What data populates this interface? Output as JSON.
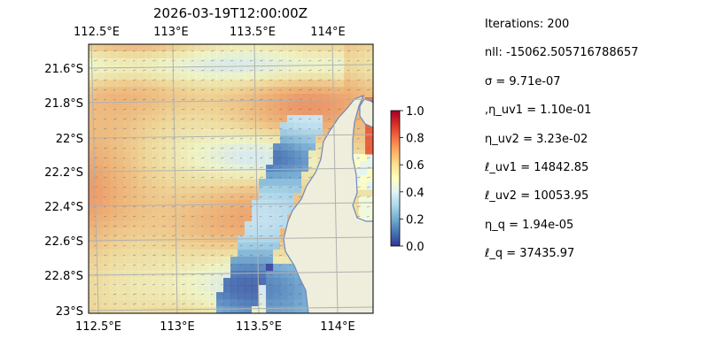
{
  "chart_data": {
    "type": "heatmap",
    "title": "2026-03-19T12:00:00Z",
    "x_top_ticks": [
      "112.5°E",
      "113°E",
      "113.5°E",
      "114°E"
    ],
    "x_bottom_ticks": [
      "112.5°E",
      "113°E",
      "113.5°E",
      "114°E"
    ],
    "y_ticks": [
      "21.6°S",
      "21.8°S",
      "22°S",
      "22.2°S",
      "22.4°S",
      "22.6°S",
      "22.8°S",
      "23°S"
    ],
    "xlim": [
      112.5,
      114.2
    ],
    "ylim": [
      -23.0,
      -21.5
    ],
    "grid": true,
    "colorbar": {
      "range": [
        0.0,
        1.0
      ],
      "ticks": [
        "0.0",
        "0.2",
        "0.4",
        "0.6",
        "0.8",
        "1.0"
      ]
    },
    "colors": {
      "ocean_background": "#9bb8dd",
      "land": "#efeedc",
      "coast": "#6e88b8",
      "grid": "#b0b0b0"
    }
  },
  "stats": [
    "Iterations: 200",
    "nll: -15062.505716788657",
    "σ = 9.71e-07",
    ",η_uv1 = 1.10e-01",
    "η_uv2 = 3.23e-02",
    "ℓ_uv1 = 14842.85",
    "ℓ_uv2 = 10053.95",
    "η_q = 1.94e-05",
    "ℓ_q = 37435.97"
  ]
}
